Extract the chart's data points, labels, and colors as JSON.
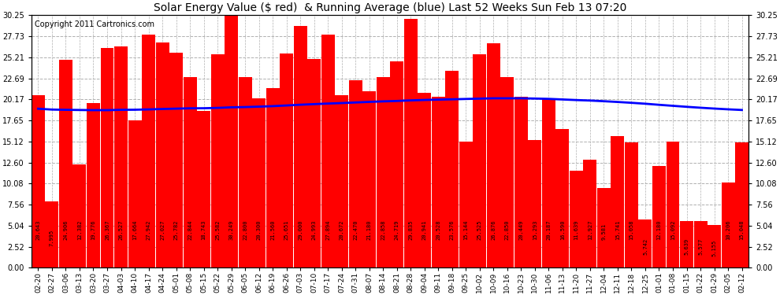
{
  "title": "Solar Energy Value ($ red)  & Running Average (blue) Last 52 Weeks Sun Feb 13 07:20",
  "copyright": "Copyright 2011 Cartronics.com",
  "bar_color": "#ff0000",
  "line_color": "#0000ff",
  "background_color": "#ffffff",
  "grid_color": "#b0b0b0",
  "ylim": [
    0,
    30.25
  ],
  "yticks_left": [
    0.0,
    2.52,
    5.04,
    7.56,
    10.08,
    12.6,
    15.12,
    17.65,
    20.17,
    22.69,
    25.21,
    27.73,
    30.25
  ],
  "yticks_right": [
    0.0,
    2.52,
    5.04,
    7.56,
    10.08,
    12.6,
    15.12,
    17.65,
    20.17,
    22.69,
    25.21,
    27.73,
    30.25
  ],
  "categories": [
    "02-20",
    "02-27",
    "03-06",
    "03-13",
    "03-20",
    "03-27",
    "04-03",
    "04-10",
    "04-17",
    "04-24",
    "05-01",
    "05-08",
    "05-15",
    "05-22",
    "05-29",
    "06-05",
    "06-12",
    "06-19",
    "06-26",
    "07-03",
    "07-10",
    "07-17",
    "07-24",
    "07-31",
    "08-07",
    "08-14",
    "08-21",
    "08-28",
    "09-04",
    "09-11",
    "09-18",
    "09-25",
    "10-02",
    "10-09",
    "10-16",
    "10-23",
    "10-30",
    "11-06",
    "11-13",
    "11-20",
    "11-27",
    "12-04",
    "12-11",
    "12-18",
    "12-25",
    "01-01",
    "01-08",
    "01-15",
    "01-22",
    "01-29",
    "02-05",
    "02-12"
  ],
  "values": [
    20.643,
    7.995,
    24.906,
    12.382,
    19.776,
    26.367,
    26.527,
    17.664,
    27.942,
    27.027,
    25.782,
    22.844,
    18.743,
    25.582,
    30.249,
    22.8,
    20.3,
    21.56,
    25.651,
    29.0,
    24.993,
    27.894,
    20.672,
    22.47,
    21.18,
    22.858,
    24.719,
    29.835,
    20.941,
    20.528,
    23.576,
    15.144,
    25.525,
    26.876,
    22.85,
    20.449,
    15.293,
    20.187,
    16.59,
    11.639,
    12.927,
    9.581,
    15.741,
    15.058,
    5.742,
    12.18,
    15.092,
    5.639,
    5.577,
    5.155,
    10.206,
    15.048
  ],
  "running_avg": [
    19.05,
    18.95,
    18.92,
    18.9,
    18.88,
    18.88,
    18.92,
    18.93,
    18.97,
    19.02,
    19.06,
    19.1,
    19.11,
    19.15,
    19.22,
    19.25,
    19.3,
    19.36,
    19.44,
    19.53,
    19.6,
    19.67,
    19.73,
    19.8,
    19.87,
    19.93,
    19.98,
    20.05,
    20.1,
    20.14,
    20.18,
    20.22,
    20.26,
    20.3,
    20.3,
    20.3,
    20.27,
    20.23,
    20.16,
    20.09,
    20.03,
    19.95,
    19.86,
    19.76,
    19.65,
    19.52,
    19.4,
    19.28,
    19.17,
    19.07,
    18.98,
    18.9
  ]
}
